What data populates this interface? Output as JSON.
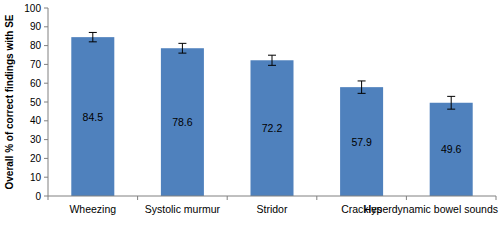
{
  "chart_data": {
    "type": "bar",
    "y_label": "Overall % of correct findings with SE",
    "categories": [
      "Wheezing",
      "Systolic murmur",
      "Stridor",
      "Crackles",
      "Hyperdynamic bowel sounds"
    ],
    "values": [
      84.5,
      78.6,
      72.2,
      57.9,
      49.6
    ],
    "errors": [
      2.5,
      2.6,
      2.7,
      3.3,
      3.4
    ],
    "color": "#4f81bd",
    "ylim": [
      0,
      100
    ],
    "yticks": [
      0,
      10,
      20,
      30,
      40,
      50,
      60,
      70,
      80,
      90,
      100
    ],
    "grid": false,
    "data_labels": true
  }
}
